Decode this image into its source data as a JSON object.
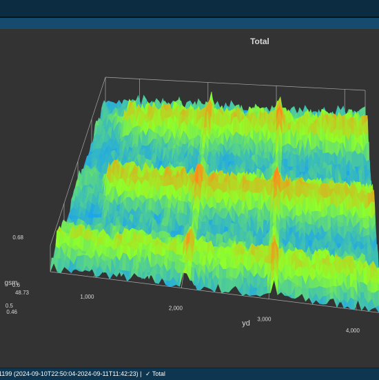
{
  "window": {
    "title": ""
  },
  "status": {
    "range_text": "1199 (2024-09-10T22:50:04-2024-09-11T11:42:23) |",
    "check_icon": "✓",
    "layer_label": "Total"
  },
  "colors": {
    "background": "#333333",
    "axis": "#c8c8c8",
    "text": "#d8d8d8",
    "surface_low": "#1ea6ea",
    "surface_mid": "#8fff2a",
    "surface_high": "#ff8a1a"
  },
  "chart_data": {
    "type": "surface3d",
    "title": "Total",
    "xlabel": "yd",
    "ylabel": "gsm",
    "x_ticks": [
      "1,000",
      "2,000",
      "3,000",
      "4,000"
    ],
    "y_ticks": [
      "48.73"
    ],
    "z_ticks": [
      "0.46",
      "0.5",
      "0.6",
      "0.68"
    ],
    "xlim": [
      500,
      4300
    ],
    "zlim": [
      0.46,
      0.68
    ],
    "colormap": [
      "#1ea6ea",
      "#8fff2a",
      "#ff8a1a"
    ],
    "bands": [
      {
        "position": 0.14,
        "level": 0.58
      },
      {
        "position": 0.5,
        "level": 0.62
      },
      {
        "position": 0.86,
        "level": 0.6
      }
    ],
    "spikes_x": [
      2050,
      3050
    ]
  }
}
